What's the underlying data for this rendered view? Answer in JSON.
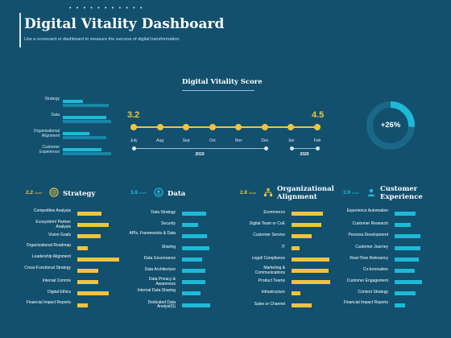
{
  "header": {
    "title": "Digital Vitality Dashboard",
    "subtitle": "Use a scorecard or dashboard to measure the success of digital transformation."
  },
  "colors": {
    "background": "#12506e",
    "accent_yellow": "#f0c43f",
    "accent_cyan": "#1fb9d8",
    "accent_dark_cyan": "#1886a6"
  },
  "mini_chart": {
    "rows": [
      {
        "label": "Strategy",
        "bar1": 0.42,
        "bar2": 0.95
      },
      {
        "label": "Data",
        "bar1": 0.9,
        "bar2": 1.0
      },
      {
        "label": "Organizational Alignment",
        "bar1": 0.55,
        "bar2": 0.9
      },
      {
        "label": "Customer Experience",
        "bar1": 0.8,
        "bar2": 1.0
      }
    ]
  },
  "score_panel": {
    "title": "Digital Vitality Score",
    "start_value": "3.2",
    "end_value": "4.5",
    "months": [
      "July",
      "Aug",
      "Sep",
      "Oct",
      "Nov",
      "Dec",
      "Jan",
      "Feb"
    ],
    "years": [
      "2019",
      "2020"
    ]
  },
  "donut": {
    "label": "+26%",
    "value": 0.26
  },
  "columns": [
    {
      "score": "2.2",
      "score_unit": "Score",
      "title": "Strategy",
      "icon": "target-icon",
      "bar_color": "#f0c43f",
      "rows": [
        {
          "label": "Competitive Analysis",
          "value": 0.58
        },
        {
          "label": "Ecosystem/ Partner Analysis",
          "value": 0.75
        },
        {
          "label": "Vision Goals",
          "value": 0.55
        },
        {
          "label": "Organizational Roadmap",
          "value": 0.25
        },
        {
          "label": "Leadership Alignment",
          "value": 1.0
        },
        {
          "label": "Cross-Functional Strategy",
          "value": 0.5
        },
        {
          "label": "Internal Comms",
          "value": 0.5
        },
        {
          "label": "Digital Ethics",
          "value": 0.75
        },
        {
          "label": "Financial Impact Reports",
          "value": 0.25
        }
      ]
    },
    {
      "score": "3.8",
      "score_unit": "Score",
      "title": "Data",
      "icon": "database-icon",
      "bar_color": "#1fb9d8",
      "rows": [
        {
          "label": "Data Strategy",
          "value": 0.58
        },
        {
          "label": "Security",
          "value": 0.38
        },
        {
          "label": "APIs, Frameworks & Data",
          "value": 0.6
        },
        {
          "label": "Sharing",
          "value": 0.65
        },
        {
          "label": "Data Governance",
          "value": 0.48
        },
        {
          "label": "Data Architecture",
          "value": 0.56
        },
        {
          "label": "Data Privacy & Awareness",
          "value": 0.55
        },
        {
          "label": "Internal Data Sharing",
          "value": 0.45
        },
        {
          "label": "Dedicated Data Analyst(S)",
          "value": 0.68
        }
      ]
    },
    {
      "score": "2.8",
      "score_unit": "Score",
      "title": "Organizational Alignment",
      "icon": "org-chart-icon",
      "bar_color": "#f0c43f",
      "rows": [
        {
          "label": "Ecommerce",
          "value": 0.75
        },
        {
          "label": "Digital Team or CoE",
          "value": 0.72
        },
        {
          "label": "Customer Service",
          "value": 0.48
        },
        {
          "label": "IT",
          "value": 0.2
        },
        {
          "label": "Legal/ Compliance",
          "value": 0.9
        },
        {
          "label": "Marketing & Communications",
          "value": 0.88
        },
        {
          "label": "Product Teams",
          "value": 0.92
        },
        {
          "label": "Infrastructure",
          "value": 0.22
        },
        {
          "label": "Sales or Channel",
          "value": 0.48
        }
      ]
    },
    {
      "score": "3.9",
      "score_unit": "Score",
      "title": "Customer Experience",
      "icon": "customer-icon",
      "bar_color": "#1fb9d8",
      "rows": [
        {
          "label": "Experience Automation",
          "value": 0.5
        },
        {
          "label": "Customer Research",
          "value": 0.38
        },
        {
          "label": "Persona Development",
          "value": 0.62
        },
        {
          "label": "Customer Journey",
          "value": 0.62
        },
        {
          "label": "Real-Time Relevancy",
          "value": 0.58
        },
        {
          "label": "Co-Innovation",
          "value": 0.48
        },
        {
          "label": "Customer Engagement",
          "value": 0.65
        },
        {
          "label": "Content Strategy",
          "value": 0.5
        },
        {
          "label": "Financial Impact Reports",
          "value": 0.25
        }
      ]
    }
  ]
}
